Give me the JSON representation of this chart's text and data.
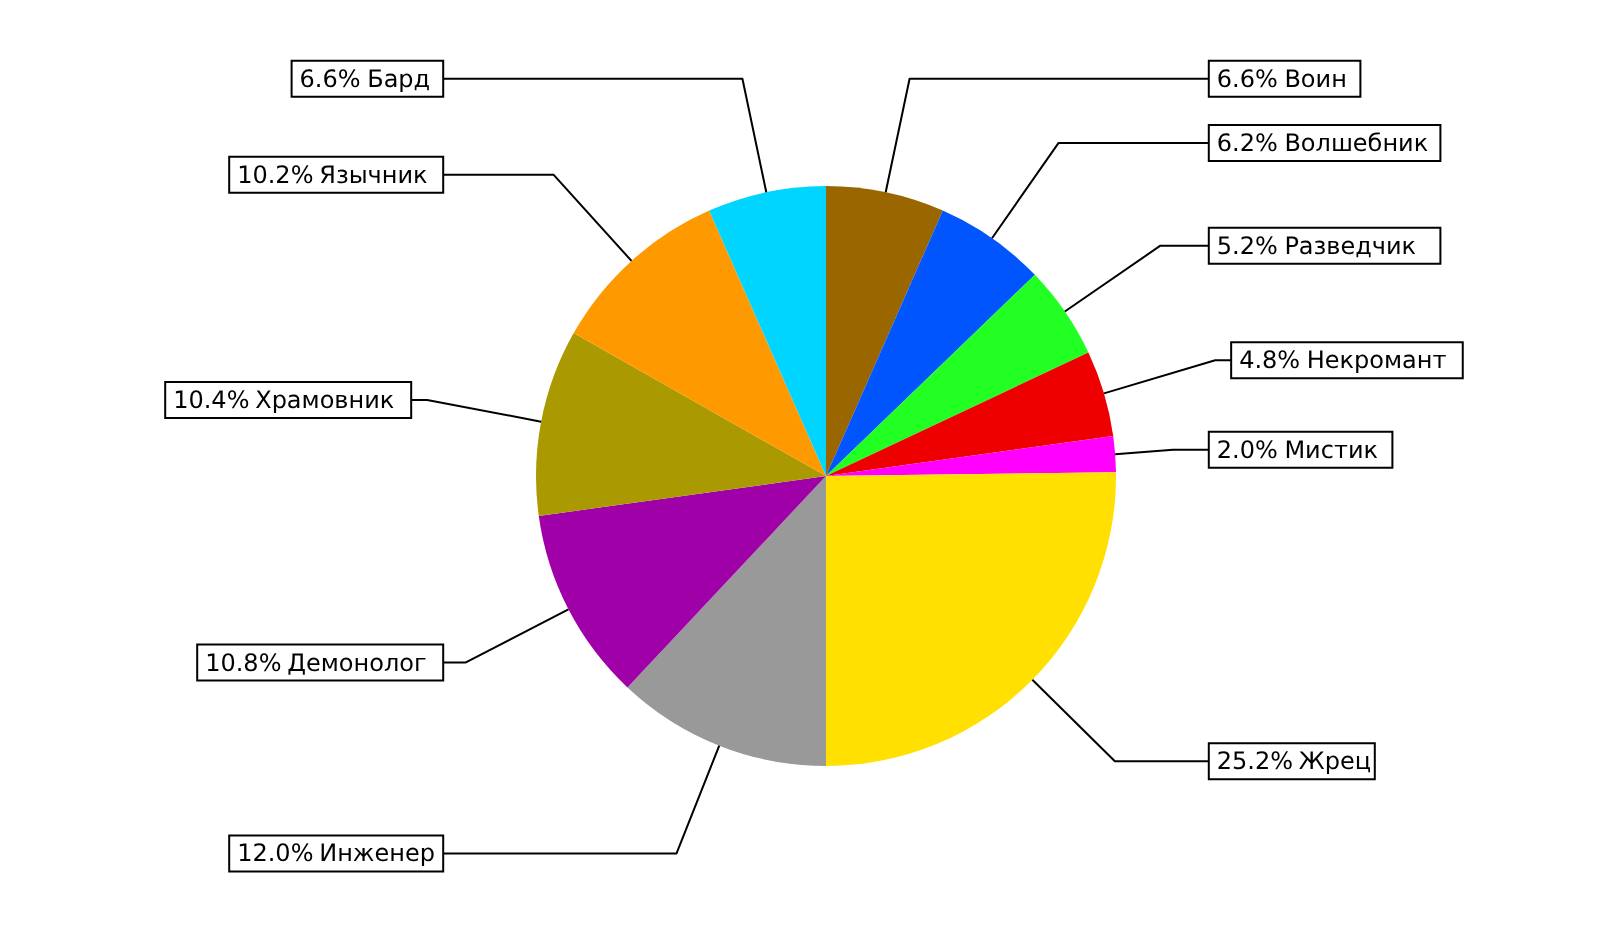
{
  "chart_data": {
    "type": "pie",
    "categories": [
      "Воин",
      "Волшебник",
      "Разведчик",
      "Некромант",
      "Мистик",
      "Жрец",
      "Инженер",
      "Демонолог",
      "Храмовник",
      "Язычник",
      "Бард"
    ],
    "values": [
      6.6,
      6.2,
      5.2,
      4.8,
      2.0,
      25.2,
      12.0,
      10.8,
      10.4,
      10.2,
      6.6
    ],
    "colors": [
      "#996600",
      "#0055ff",
      "#22ff22",
      "#ee0000",
      "#ff00ff",
      "#ffe000",
      "#999999",
      "#a000a8",
      "#aa9900",
      "#ff9900",
      "#00d5ff"
    ],
    "value_labels": [
      "6.6%",
      "6.2%",
      "5.2%",
      "4.8%",
      "2.0%",
      "25.2%",
      "12.0%",
      "10.8%",
      "10.4%",
      "10.2%",
      "6.6%"
    ]
  }
}
